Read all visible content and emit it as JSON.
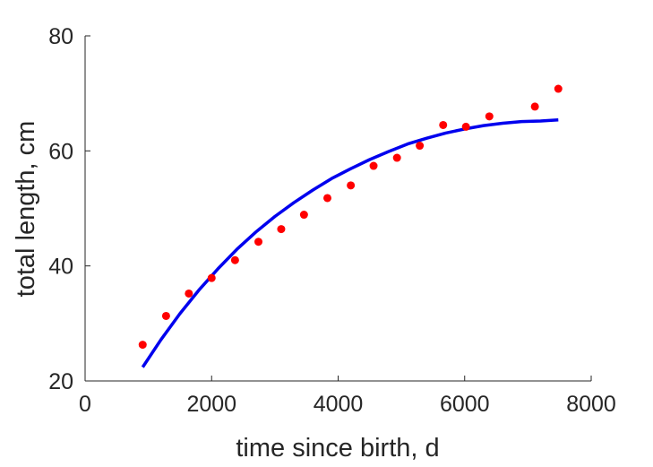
{
  "chart_data": {
    "type": "scatter",
    "title": "",
    "xlabel": "time since birth, d",
    "ylabel": "total length, cm",
    "xlim": [
      0,
      8000
    ],
    "ylim": [
      20,
      80
    ],
    "xticks": [
      0,
      2000,
      4000,
      6000,
      8000
    ],
    "yticks": [
      20,
      40,
      60,
      80
    ],
    "xtick_labels": [
      "0",
      "2000",
      "4000",
      "6000",
      "8000"
    ],
    "ytick_labels": [
      "20",
      "40",
      "60",
      "80"
    ],
    "grid": false,
    "colors": {
      "points": "#ff0000",
      "curve": "#0000ee",
      "axis": "#262626"
    },
    "series": [
      {
        "kind": "points",
        "x": [
          910,
          1280,
          1640,
          2000,
          2370,
          2740,
          3100,
          3460,
          3830,
          4200,
          4560,
          4930,
          5290,
          5660,
          6020,
          6390,
          7110,
          7480
        ],
        "y": [
          26.3,
          31.3,
          35.2,
          37.9,
          41.0,
          44.2,
          46.4,
          48.9,
          51.8,
          54.0,
          57.4,
          58.8,
          60.9,
          64.5,
          64.2,
          66.0,
          67.7,
          70.8
        ]
      },
      {
        "kind": "line",
        "x": [
          910,
          1200,
          1500,
          1800,
          2100,
          2400,
          2700,
          3000,
          3300,
          3600,
          3900,
          4200,
          4500,
          4800,
          5100,
          5400,
          5700,
          6000,
          6300,
          6600,
          6900,
          7200,
          7480
        ],
        "y": [
          22.4,
          27.2,
          31.7,
          35.8,
          39.5,
          42.9,
          45.9,
          48.6,
          51.0,
          53.2,
          55.2,
          56.9,
          58.5,
          59.9,
          61.2,
          62.2,
          63.1,
          63.8,
          64.4,
          64.8,
          65.1,
          65.2,
          65.4
        ]
      }
    ]
  }
}
